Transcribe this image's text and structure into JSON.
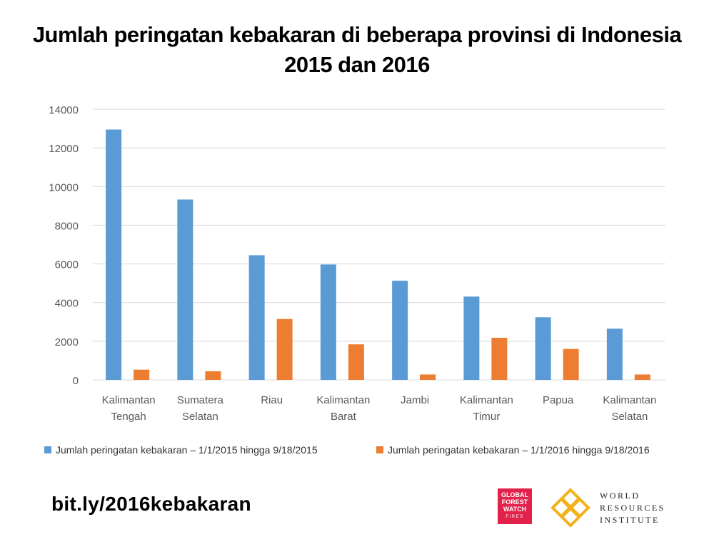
{
  "header": {
    "title_line1": "Jumlah peringatan kebakaran di beberapa provinsi di Indonesia",
    "title_line2": "2015 dan 2016"
  },
  "chart_data": {
    "type": "bar",
    "title": "Jumlah peringatan kebakaran di beberapa provinsi di Indonesia 2015 dan 2016",
    "categories": [
      [
        "Kalimantan",
        "Tengah"
      ],
      [
        "Sumatera",
        "Selatan"
      ],
      [
        "Riau"
      ],
      [
        "Kalimantan",
        "Barat"
      ],
      [
        "Jambi"
      ],
      [
        "Kalimantan",
        "Timur"
      ],
      [
        "Papua"
      ],
      [
        "Kalimantan",
        "Selatan"
      ]
    ],
    "series": [
      {
        "name": "Jumlah peringatan kebakaran – 1/1/2015 hingga 9/18/2015",
        "color": "#5b9bd5",
        "values": [
          12950,
          9330,
          6450,
          5970,
          5130,
          4310,
          3240,
          2650
        ]
      },
      {
        "name": "Jumlah peringatan kebakaran – 1/1/2016 hingga 9/18/2016",
        "color": "#ed7d31",
        "values": [
          530,
          450,
          3150,
          1840,
          280,
          2180,
          1600,
          280
        ]
      }
    ],
    "ylim": [
      0,
      14000
    ],
    "yticks": [
      0,
      2000,
      4000,
      6000,
      8000,
      10000,
      12000,
      14000
    ],
    "grid": true,
    "legend_position": "bottom"
  },
  "footer": {
    "link": "bit.ly/2016kebakaran",
    "gfw_logo": [
      "GLOBAL",
      "FOREST",
      "WATCH",
      "FIRES"
    ],
    "wri_logo": [
      "WORLD",
      "RESOURCES",
      "INSTITUTE"
    ]
  }
}
